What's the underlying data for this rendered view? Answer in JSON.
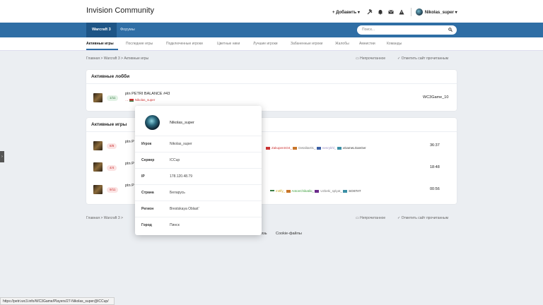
{
  "brand": "Invision Community",
  "top": {
    "add_label": "Добавить",
    "username": "Nikolas_super"
  },
  "nav": {
    "tabs": [
      "Warcraft 3",
      "Форумы"
    ]
  },
  "search": {
    "placeholder": "Поиск..."
  },
  "subnav": [
    "Активные игры",
    "Последние игры",
    "Подключенные игроки",
    "Цветные ники",
    "Лучшие игроки",
    "Забаненные игроки",
    "Жалобы",
    "Амнистии",
    "Команды"
  ],
  "breadcrumb": [
    "Главная",
    "Warcraft 3",
    "Активные игры"
  ],
  "breadcrumb_actions": {
    "unread": "Непрочитанное",
    "mark_read": "Отметить сайт прочитанным"
  },
  "lobbies": {
    "title": "Активные лобби",
    "rows": [
      {
        "slots": "1/11",
        "name": "ptn PETRI BALANCE #43",
        "player": "Nikolas_super",
        "server": "WC3Game_10"
      }
    ]
  },
  "games": {
    "title": "Активные игры",
    "rows": [
      {
        "slots": "8/8",
        "name": "ptn P",
        "players": [
          "ZakupenSO4_",
          "Detalitar01_",
          "nenrykhl_",
          "xGameLGanGer"
        ],
        "time": "36:37"
      },
      {
        "slots": "4/4",
        "name": "ptn P",
        "players": [],
        "time": "18:48"
      },
      {
        "slots": "9/11",
        "name": "ptn P",
        "players": [
          "m0lfy_",
          "AntonChikatilo_",
          "Uzbeki_splyat_",
          "SOSTAT"
        ],
        "time": "00:56"
      }
    ]
  },
  "popup": {
    "name": "Nikolas_super",
    "fields": [
      {
        "label": "Игрок",
        "value": "Nikolas_super"
      },
      {
        "label": "Сервер",
        "value": "ICCup"
      },
      {
        "label": "IP",
        "value": "178.120.48.79"
      },
      {
        "label": "Страна",
        "value": "Беларусь"
      },
      {
        "label": "Регион",
        "value": "Brestskaya Oblast'"
      },
      {
        "label": "Город",
        "value": "Пинск"
      }
    ]
  },
  "footer": {
    "links": [
      "Обратная связь",
      "Cookie-файлы"
    ]
  },
  "status_url": "https://petri.wc3.info/WC3Game/Players/27-Nikolas_super@ICCup/",
  "colors": {
    "nav": "#2f6ea5",
    "accent_red": "#c33",
    "accent_green": "#3a7d46"
  }
}
